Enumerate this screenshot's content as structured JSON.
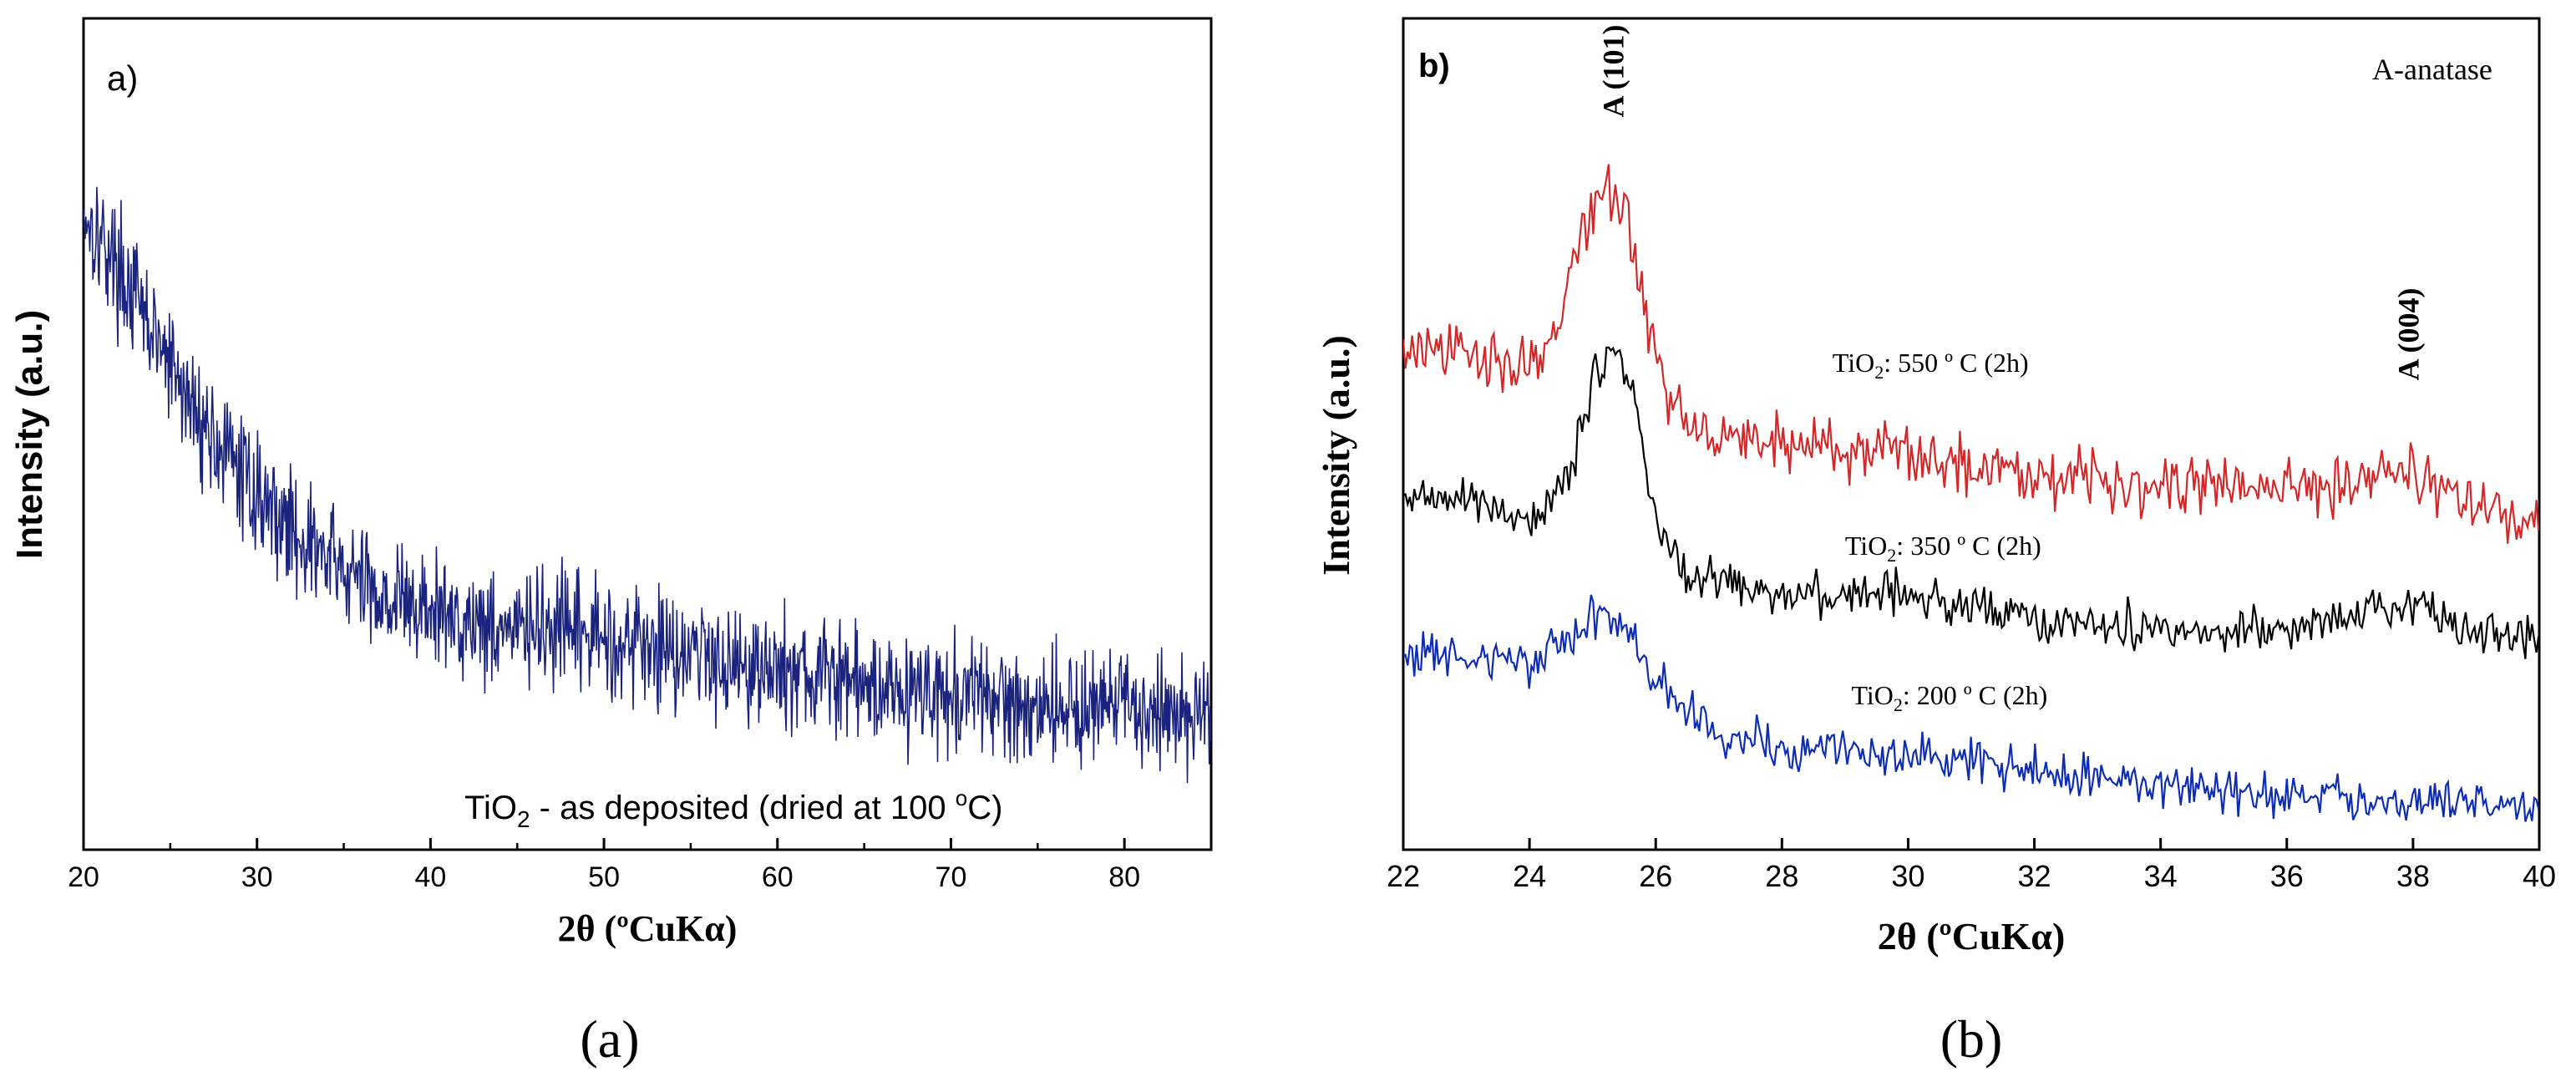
{
  "chart_data": [
    {
      "panel": "a",
      "type": "line",
      "panel_label": "a)",
      "caption_text": "a",
      "xlabel": "2θ (ºCuKα)",
      "ylabel": "Intensity (a.u.)",
      "xlim": [
        20,
        85
      ],
      "ylim": [
        0,
        1
      ],
      "xticks": [
        20,
        30,
        40,
        50,
        60,
        70,
        80
      ],
      "xticks_minor": [
        25,
        35,
        45,
        55,
        65,
        75
      ],
      "grid": false,
      "annotation": {
        "prefix": "TiO",
        "sub": "2",
        "middle": " - as deposited (dried at 100 ",
        "sup": "o",
        "suffix": "C)"
      },
      "series": [
        {
          "name": "TiO2 - as deposited (dried at 100 °C)",
          "color": "#1a237e",
          "noise": 0.035,
          "profile": [
            [
              20,
              0.77
            ],
            [
              22,
              0.7
            ],
            [
              24,
              0.62
            ],
            [
              26,
              0.54
            ],
            [
              28,
              0.48
            ],
            [
              30,
              0.43
            ],
            [
              32,
              0.385
            ],
            [
              34,
              0.35
            ],
            [
              36,
              0.32
            ],
            [
              38,
              0.3
            ],
            [
              40,
              0.285
            ],
            [
              45,
              0.265
            ],
            [
              50,
              0.255
            ],
            [
              55,
              0.24
            ],
            [
              60,
              0.215
            ],
            [
              65,
              0.2
            ],
            [
              70,
              0.185
            ],
            [
              75,
              0.175
            ],
            [
              80,
              0.17
            ],
            [
              85,
              0.165
            ]
          ]
        }
      ]
    },
    {
      "panel": "b",
      "type": "line",
      "panel_label": "b)",
      "caption_text": "b",
      "xlabel": "2θ (ºCuKα)",
      "ylabel": "Intensity (a.u.)",
      "xlim": [
        22,
        40
      ],
      "ylim": [
        0,
        1
      ],
      "xticks": [
        22,
        24,
        26,
        28,
        30,
        32,
        34,
        36,
        38,
        40
      ],
      "grid": false,
      "legend_text": "A-anatase",
      "peaks": [
        {
          "label": "A (101)",
          "x": 25.3
        },
        {
          "label": "A (004)",
          "x": 37.9
        }
      ],
      "series": [
        {
          "name": "TiO2: 550 º C (2h)",
          "label_prefix": "TiO",
          "label_sub": "2",
          "label_suffix": ": 550 º C (2h)",
          "label_x": 28.8,
          "label_y": 0.575,
          "color": "#d62728",
          "noise": 0.018,
          "profile": [
            [
              22,
              0.6
            ],
            [
              23,
              0.595
            ],
            [
              24,
              0.585
            ],
            [
              24.5,
              0.63
            ],
            [
              24.8,
              0.74
            ],
            [
              25.2,
              0.8
            ],
            [
              25.5,
              0.77
            ],
            [
              25.8,
              0.66
            ],
            [
              26.2,
              0.54
            ],
            [
              27,
              0.5
            ],
            [
              28,
              0.49
            ],
            [
              30,
              0.475
            ],
            [
              32,
              0.455
            ],
            [
              34,
              0.44
            ],
            [
              36,
              0.435
            ],
            [
              37.3,
              0.45
            ],
            [
              37.9,
              0.46
            ],
            [
              38.5,
              0.43
            ],
            [
              39.2,
              0.41
            ],
            [
              40,
              0.385
            ]
          ]
        },
        {
          "name": "TiO2: 350 º C (2h)",
          "label_prefix": "TiO",
          "label_sub": "2",
          "label_suffix": ": 350 º C (2h)",
          "label_x": 29.0,
          "label_y": 0.355,
          "color": "#000000",
          "noise": 0.013,
          "profile": [
            [
              22,
              0.425
            ],
            [
              23,
              0.42
            ],
            [
              24,
              0.395
            ],
            [
              24.6,
              0.44
            ],
            [
              25,
              0.56
            ],
            [
              25.3,
              0.61
            ],
            [
              25.6,
              0.56
            ],
            [
              26,
              0.4
            ],
            [
              26.5,
              0.33
            ],
            [
              28,
              0.31
            ],
            [
              30,
              0.305
            ],
            [
              32,
              0.28
            ],
            [
              34,
              0.265
            ],
            [
              36,
              0.265
            ],
            [
              37.3,
              0.29
            ],
            [
              37.9,
              0.3
            ],
            [
              38.5,
              0.28
            ],
            [
              39.3,
              0.26
            ],
            [
              40,
              0.245
            ]
          ]
        },
        {
          "name": "TiO2: 200 º C (2h)",
          "label_prefix": "TiO",
          "label_sub": "2",
          "label_suffix": ": 200 º C (2h)",
          "label_x": 29.1,
          "label_y": 0.175,
          "color": "#0d2db4",
          "noise": 0.013,
          "profile": [
            [
              22,
              0.24
            ],
            [
              23,
              0.23
            ],
            [
              24,
              0.225
            ],
            [
              24.7,
              0.26
            ],
            [
              25.1,
              0.285
            ],
            [
              25.6,
              0.26
            ],
            [
              26,
              0.2
            ],
            [
              27,
              0.14
            ],
            [
              28,
              0.12
            ],
            [
              30,
              0.115
            ],
            [
              32,
              0.095
            ],
            [
              34,
              0.08
            ],
            [
              36,
              0.065
            ],
            [
              38,
              0.06
            ],
            [
              40,
              0.05
            ]
          ]
        }
      ]
    }
  ]
}
